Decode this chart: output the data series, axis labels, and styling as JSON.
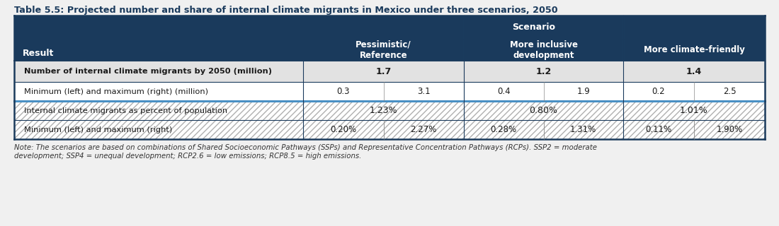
{
  "title": "Table 5.5: Projected number and share of internal climate migrants in Mexico under three scenarios, 2050",
  "title_color": "#1a3a5c",
  "background_color": "#f0f0f0",
  "header_bg": "#1a3a5c",
  "row_bg_light": "#e2e2e2",
  "row_bg_white": "#ffffff",
  "blue_line_color": "#4a90c4",
  "dark_line_color": "#1a3a5c",
  "scenario_header": "Scenario",
  "col1_header": "Pessimistic/\nReference",
  "col2_header": "More inclusive\ndevelopment",
  "col3_header": "More climate-friendly",
  "result_header": "Result",
  "rows": [
    {
      "label": "Number of internal climate migrants by 2050 (million)",
      "bold": true,
      "bg": "#e2e2e2",
      "values": [
        "1.7",
        "1.2",
        "1.4"
      ],
      "merged": true,
      "hatch": false,
      "val_bold": true
    },
    {
      "label": "Minimum (left) and maximum (right) (million)",
      "bold": false,
      "bg": "#ffffff",
      "values": [
        "0.3",
        "3.1",
        "0.4",
        "1.9",
        "0.2",
        "2.5"
      ],
      "merged": false,
      "hatch": false,
      "val_bold": false
    },
    {
      "label": "Internal climate migrants as percent of population",
      "bold": false,
      "bg": "#e2e2e2",
      "values": [
        "1.23%",
        "0.80%",
        "1.01%"
      ],
      "merged": true,
      "hatch": true,
      "val_bold": false
    },
    {
      "label": "Minimum (left) and maximum (right)",
      "bold": false,
      "bg": "#ffffff",
      "values": [
        "0.20%",
        "2.27%",
        "0.28%",
        "1.31%",
        "0.11%",
        "1.90%"
      ],
      "merged": false,
      "hatch": true,
      "val_bold": false
    }
  ],
  "note": "Note: The scenarios are based on combinations of Shared Socioeconomic Pathways (SSPs) and Representative Concentration Pathways (RCPs). SSP2 = moderate\ndevelopment; SSP4 = unequal development; RCP2.6 = low emissions; RCP8.5 = high emissions."
}
